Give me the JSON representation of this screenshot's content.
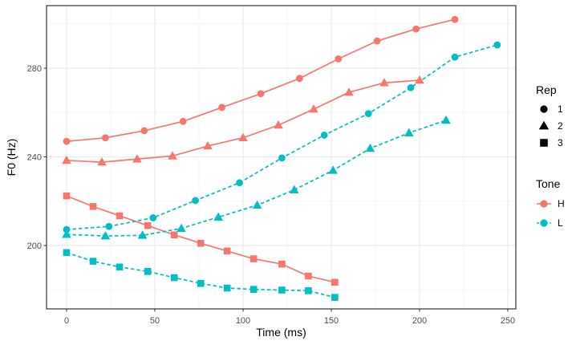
{
  "chart_data": {
    "type": "line",
    "title": "",
    "xlabel": "Time (ms)",
    "ylabel": "F0 (Hz)",
    "xlim": [
      -11,
      255
    ],
    "ylim": [
      171,
      308
    ],
    "x_ticks": [
      0,
      50,
      100,
      150,
      200,
      250
    ],
    "y_ticks": [
      200,
      240,
      280
    ],
    "x_minor_ticks": [
      25,
      75,
      125,
      175,
      225
    ],
    "y_minor_ticks": [
      180,
      220,
      260,
      300
    ],
    "grid": "major+minor",
    "legend_position": "right",
    "groups": {
      "color_by": "Tone",
      "shape_by": "Rep"
    },
    "series": [
      {
        "name": "Tone H Rep 1",
        "tone": "H",
        "rep": "1",
        "shape": "circle",
        "line": "solid",
        "color": "#F8766D",
        "x": [
          0,
          22,
          44,
          66,
          88,
          110,
          132,
          154,
          176,
          198,
          220
        ],
        "y": [
          247.0,
          248.6,
          251.8,
          256.0,
          262.3,
          268.5,
          275.4,
          284.2,
          292.3,
          297.7,
          302.0
        ]
      },
      {
        "name": "Tone H Rep 2",
        "tone": "H",
        "rep": "2",
        "shape": "triangle",
        "line": "solid",
        "color": "#F8766D",
        "x": [
          0,
          20,
          40,
          60,
          80,
          100,
          120,
          140,
          160,
          180,
          200
        ],
        "y": [
          238.4,
          237.6,
          239.0,
          240.4,
          244.9,
          248.6,
          254.3,
          261.5,
          269.1,
          273.4,
          274.6
        ]
      },
      {
        "name": "Tone H Rep 3",
        "tone": "H",
        "rep": "3",
        "shape": "square",
        "line": "solid",
        "color": "#F8766D",
        "x": [
          0,
          15,
          30,
          46,
          61,
          76,
          91,
          106,
          122,
          137,
          152
        ],
        "y": [
          222.4,
          217.6,
          213.4,
          209.0,
          204.8,
          201.0,
          197.5,
          194.0,
          191.6,
          186.2,
          183.4
        ]
      },
      {
        "name": "Tone L Rep 1",
        "tone": "L",
        "rep": "1",
        "shape": "circle",
        "line": "dashed",
        "color": "#00BFC4",
        "x": [
          0,
          24,
          49,
          73,
          98,
          122,
          146,
          171,
          195,
          220,
          244
        ],
        "y": [
          207.2,
          208.6,
          212.5,
          220.3,
          228.3,
          239.5,
          249.8,
          259.5,
          271.2,
          285.0,
          290.5
        ]
      },
      {
        "name": "Tone L Rep 2",
        "tone": "L",
        "rep": "2",
        "shape": "triangle",
        "line": "dashed",
        "color": "#00BFC4",
        "x": [
          0,
          22,
          43,
          65,
          86,
          108,
          129,
          151,
          172,
          194,
          215
        ],
        "y": [
          205.0,
          204.3,
          204.6,
          207.7,
          212.8,
          218.2,
          225.1,
          233.9,
          243.8,
          250.8,
          256.5
        ]
      },
      {
        "name": "Tone L Rep 3",
        "tone": "L",
        "rep": "3",
        "shape": "square",
        "line": "dashed",
        "color": "#00BFC4",
        "x": [
          0,
          15,
          30,
          46,
          61,
          76,
          91,
          106,
          122,
          137,
          152
        ],
        "y": [
          196.8,
          192.9,
          190.3,
          188.3,
          185.5,
          182.9,
          180.8,
          180.2,
          179.9,
          179.6,
          176.6
        ]
      }
    ],
    "legends": [
      {
        "title": "Rep",
        "entries": [
          {
            "label": "1",
            "shape": "circle",
            "color": "#000000",
            "line": "none"
          },
          {
            "label": "2",
            "shape": "triangle",
            "color": "#000000",
            "line": "none"
          },
          {
            "label": "3",
            "shape": "square",
            "color": "#000000",
            "line": "none"
          }
        ]
      },
      {
        "title": "Tone",
        "entries": [
          {
            "label": "H",
            "shape": "circle",
            "color": "#F8766D",
            "line": "solid"
          },
          {
            "label": "L",
            "shape": "circle",
            "color": "#00BFC4",
            "line": "dashed"
          }
        ]
      }
    ],
    "colors": {
      "tone_H": "#F8766D",
      "tone_L": "#00BFC4",
      "axis_text": "#4d4d4d",
      "panel_border": "#333333",
      "grid_major": "#EBEBEB",
      "grid_minor": "#F5F5F5"
    }
  }
}
